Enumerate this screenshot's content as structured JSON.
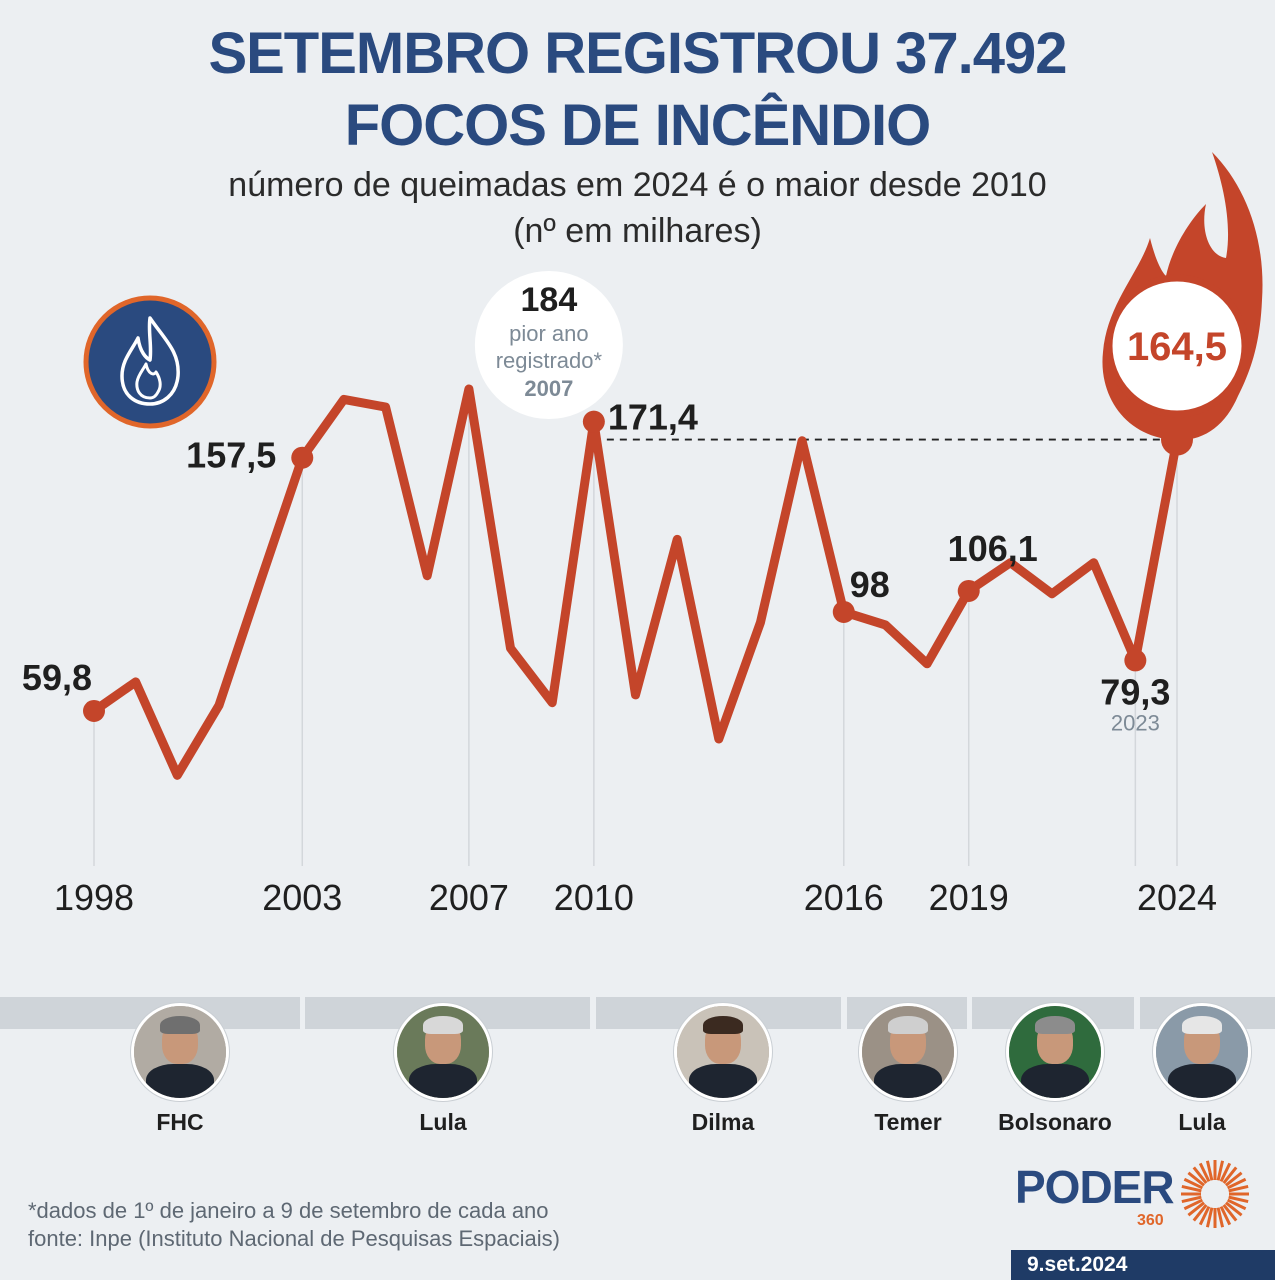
{
  "header": {
    "title_line1": "SETEMBRO REGISTROU 37.492",
    "title_line2": "FOCOS DE INCÊNDIO",
    "subtitle_line1": "número de queimadas em 2024 é o maior desde 2010",
    "subtitle_line2": "(nº em milhares)"
  },
  "chart_data": {
    "type": "line",
    "title": "SETEMBRO REGISTROU 37.492 FOCOS DE INCÊNDIO",
    "subtitle": "número de queimadas em 2024 é o maior desde 2010",
    "ylabel": "",
    "xlabel": "",
    "x": [
      1998,
      1999,
      2000,
      2001,
      2002,
      2003,
      2004,
      2005,
      2006,
      2007,
      2008,
      2009,
      2010,
      2011,
      2012,
      2013,
      2014,
      2015,
      2016,
      2017,
      2018,
      2019,
      2020,
      2021,
      2022,
      2023,
      2024
    ],
    "series": [
      {
        "values": [
          59.8,
          71,
          35,
          62,
          110,
          157.5,
          180,
          177,
          112,
          184,
          84,
          63,
          171.4,
          66,
          126,
          49,
          94,
          164,
          98,
          93,
          78,
          106.1,
          117,
          105,
          117,
          79.3,
          164.5
        ]
      }
    ],
    "ylim": [
      0,
      190
    ],
    "x_ticks": [
      "1998",
      "2003",
      "2007",
      "2010",
      "2016",
      "2019",
      "2024"
    ],
    "x_tick_years": [
      1998,
      2003,
      2007,
      2010,
      2016,
      2019,
      2024
    ],
    "labelled_points": [
      {
        "year": 1998,
        "label": "59,8"
      },
      {
        "year": 2003,
        "label": "157,5"
      },
      {
        "year": 2010,
        "label": "171,4"
      },
      {
        "year": 2016,
        "label": "98"
      },
      {
        "year": 2019,
        "label": "106,1"
      },
      {
        "year": 2023,
        "label": "79,3",
        "sublabel": "2023"
      }
    ],
    "peak_annotation": {
      "year": 2007,
      "value": "184",
      "text1": "pior ano",
      "text2": "registrado*",
      "year_label": "2007"
    },
    "highlight": {
      "year": 2024,
      "label": "164,5"
    },
    "reference_line": {
      "from_year": 2010,
      "to_year": 2024,
      "value": 164.5,
      "style": "dashed"
    },
    "colors": {
      "line": "#c4452a",
      "grid": "#d3d7db",
      "text": "#1f1f1f",
      "accent_blue": "#2a4a7f",
      "flame_orange": "#e0662a"
    }
  },
  "presidents": [
    {
      "name": "FHC",
      "hair": "#6f6f6f",
      "bg": "#b1aba3"
    },
    {
      "name": "Lula",
      "hair": "#d8d8d8",
      "bg": "#6a7a5a"
    },
    {
      "name": "Dilma",
      "hair": "#3b2a20",
      "bg": "#c9c2b8"
    },
    {
      "name": "Temer",
      "hair": "#cfcfcf",
      "bg": "#9b9186"
    },
    {
      "name": "Bolsonaro",
      "hair": "#8c8c8c",
      "bg": "#2f6b3d"
    },
    {
      "name": "Lula",
      "hair": "#e6e6e6",
      "bg": "#8a9aa8"
    }
  ],
  "footer": {
    "note": "*dados de 1º de janeiro a 9 de setembro de cada ano",
    "source": "fonte: Inpe (Instituto Nacional de Pesquisas Espaciais)"
  },
  "brand": {
    "name": "PODER",
    "number": "360",
    "date": "9.set.2024"
  }
}
